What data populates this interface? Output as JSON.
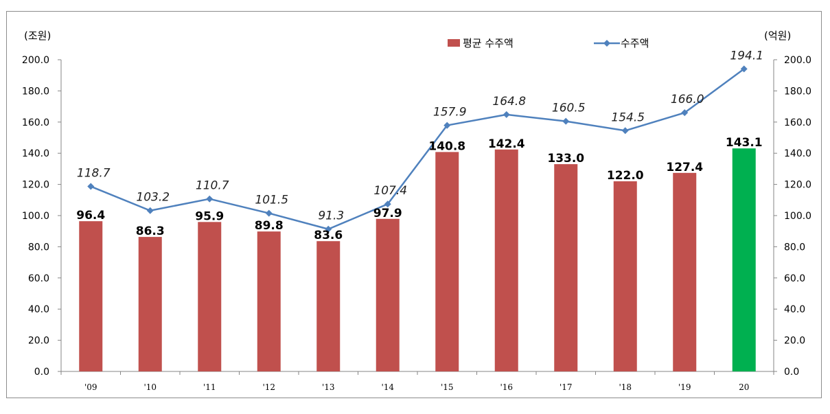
{
  "chart_data": {
    "type": "bar",
    "categories": [
      "'09",
      "'10",
      "'11",
      "'12",
      "'13",
      "'14",
      "'15",
      "'16",
      "'17",
      "'18",
      "'19",
      "20"
    ],
    "series": [
      {
        "name": "평균 수주액",
        "type": "bar",
        "axis": "left",
        "values": [
          96.4,
          86.3,
          95.9,
          89.8,
          83.6,
          97.9,
          140.8,
          142.4,
          133.0,
          122.0,
          127.4,
          143.1
        ],
        "labels": [
          "96.4",
          "86.3",
          "95.9",
          "89.8",
          "83.6",
          "97.9",
          "140.8",
          "142.4",
          "133.0",
          "122.0",
          "127.4",
          "143.1"
        ],
        "color": "#c0504d",
        "highlight_color": "#00b050",
        "highlight_index": 11
      },
      {
        "name": "수주액",
        "type": "line",
        "axis": "right",
        "values": [
          118.7,
          103.2,
          110.7,
          101.5,
          91.3,
          107.4,
          157.9,
          164.8,
          160.5,
          154.5,
          166.0,
          194.1
        ],
        "labels": [
          "118.7",
          "103.2",
          "110.7",
          "101.5",
          "91.3",
          "107.4",
          "157.9",
          "164.8",
          "160.5",
          "154.5",
          "166.0",
          "194.1"
        ],
        "color": "#4f81bd",
        "marker": "diamond"
      }
    ],
    "left_axis": {
      "unit_label": "(조원)",
      "ylim": [
        0,
        200
      ],
      "ticks": [
        "0.0",
        "20.0",
        "40.0",
        "60.0",
        "80.0",
        "100.0",
        "120.0",
        "140.0",
        "160.0",
        "180.0",
        "200.0"
      ]
    },
    "right_axis": {
      "unit_label": "(억원)",
      "ylim": [
        0,
        200
      ],
      "ticks": [
        "0.0",
        "20.0",
        "40.0",
        "60.0",
        "80.0",
        "100.0",
        "120.0",
        "140.0",
        "160.0",
        "180.0",
        "200.0"
      ]
    },
    "grid": false,
    "legend_position": "top-center"
  }
}
